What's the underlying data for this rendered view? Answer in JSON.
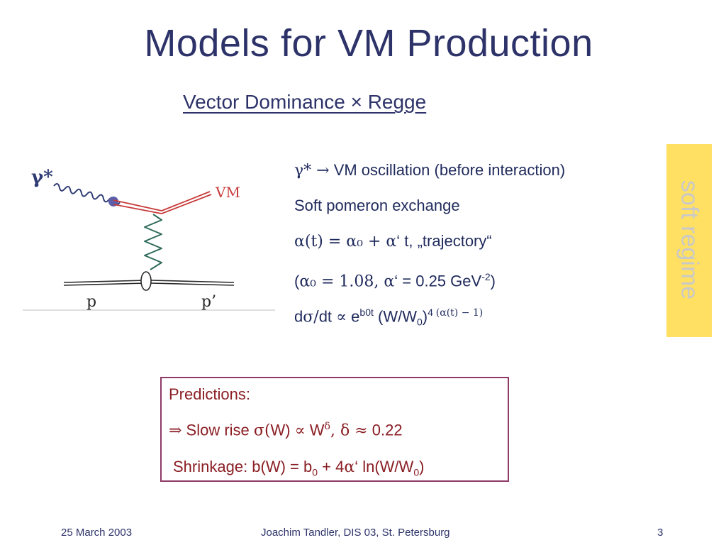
{
  "slide": {
    "title": "Models for VM Production",
    "subtitle": "Vector Dominance × Regge"
  },
  "diagram": {
    "gamma_label": "γ*",
    "vm_label": "VM",
    "p_label": "p",
    "pprime_label": "p’"
  },
  "bullets": {
    "b1_sym": "γ* →",
    "b1_text": " VM oscillation (before interaction)",
    "b2_text": "Soft pomeron exchange",
    "b3_math": "α(t) = α₀ + α",
    "b3_text": "‘ t,  „trajectory“",
    "b4_open": "(",
    "b4_math": "α₀ = 1.08,  α",
    "b4_text": "‘ = 0.25 GeV",
    "b4_exp": "-2",
    "b4_close": ")",
    "b5_d": "d",
    "b5_sigma": "σ/",
    "b5_dt": "dt ",
    "b5_prop": "∝",
    "b5_e": " e",
    "b5_exp": "b0t",
    "b5_w": " (W/W",
    "b5_sub": "0",
    "b5_close": ")",
    "b5_exp2": "4 ",
    "b5_exp3": "(α(t) − 1)"
  },
  "side_tag": {
    "text": "soft regime",
    "bg_color": "#ffe063"
  },
  "predictions": {
    "heading": "Predictions:",
    "l2_arrow": "⇒",
    "l2_text": " Slow rise ",
    "l2_sigma": "σ(",
    "l2_w": "W) ",
    "l2_prop": "∝",
    "l2_w2": " W",
    "l2_delta_exp": "δ",
    "l2_comma": ",  ",
    "l2_delta": "δ",
    "l2_approx": " ≈",
    "l2_val": " 0.22",
    "l3_text": "Shrinkage: b(W) = b",
    "l3_sub0": "0",
    "l3_plus": " + 4",
    "l3_alpha": "α",
    "l3_ln": "‘ ln(W/W",
    "l3_sub1": "0",
    "l3_close": ")",
    "border_color": "#8e3a67",
    "text_color": "#8a1e24"
  },
  "footer": {
    "date": "25 March 2003",
    "author": "Joachim Tandler, DIS 03, St. Petersburg",
    "page": "3"
  }
}
